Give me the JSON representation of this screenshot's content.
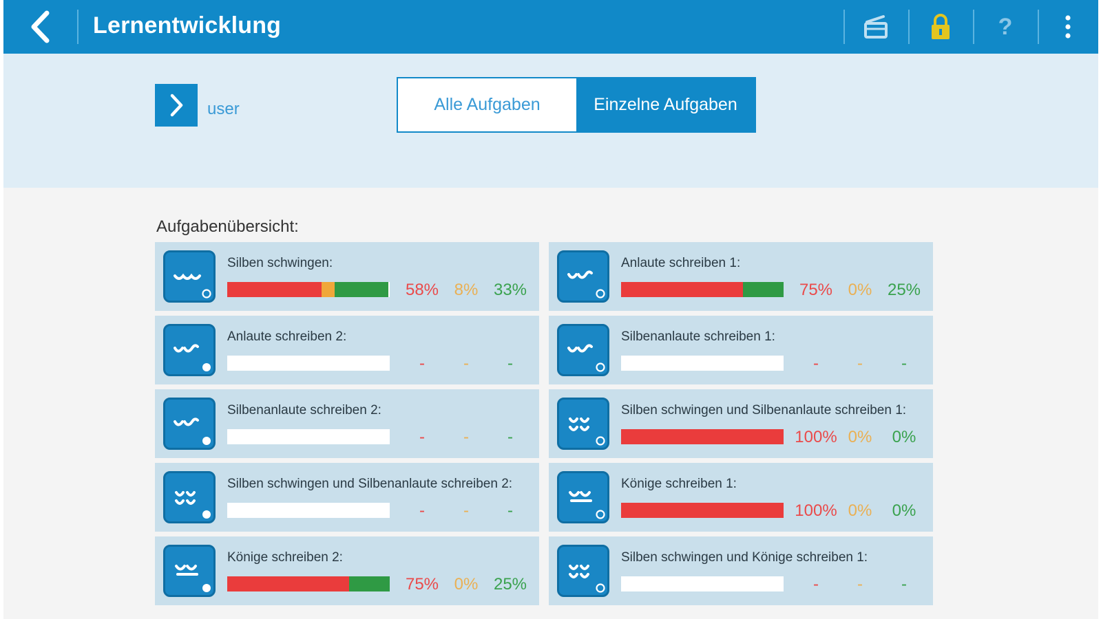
{
  "topbar": {
    "title": "Lernentwicklung",
    "actions": [
      {
        "icon": "scene-board-icon"
      },
      {
        "icon": "lock-icon"
      },
      {
        "icon": "help-icon",
        "glyph": "?"
      },
      {
        "icon": "more-vertical-icon"
      }
    ]
  },
  "user": {
    "label": "user"
  },
  "tabs": {
    "all_label": "Alle Aufgaben",
    "single_label": "Einzelne Aufgaben"
  },
  "overview": {
    "title": "Aufgabenübersicht:",
    "tasks": [
      {
        "name": "Silben schwingen:",
        "red": 58,
        "yellow": 8,
        "green": 33,
        "red_label": "58%",
        "yellow_label": "8%",
        "green_label": "33%"
      },
      {
        "name": "Anlaute schreiben 1:",
        "red": 75,
        "yellow": 0,
        "green": 25,
        "red_label": "75%",
        "yellow_label": "0%",
        "green_label": "25%"
      },
      {
        "name": "Anlaute schreiben 2:",
        "red": 0,
        "yellow": 0,
        "green": 0,
        "red_label": "-",
        "yellow_label": "-",
        "green_label": "-"
      },
      {
        "name": "Silbenanlaute schreiben 1:",
        "red": 0,
        "yellow": 0,
        "green": 0,
        "red_label": "-",
        "yellow_label": "-",
        "green_label": "-"
      },
      {
        "name": "Silbenanlaute schreiben 2:",
        "red": 0,
        "yellow": 0,
        "green": 0,
        "red_label": "-",
        "yellow_label": "-",
        "green_label": "-"
      },
      {
        "name": "Silben schwingen und Silbenanlaute schreiben 1:",
        "red": 100,
        "yellow": 0,
        "green": 0,
        "red_label": "100%",
        "yellow_label": "0%",
        "green_label": "0%"
      },
      {
        "name": "Silben schwingen und Silbenanlaute schreiben 2:",
        "red": 0,
        "yellow": 0,
        "green": 0,
        "red_label": "-",
        "yellow_label": "-",
        "green_label": "-"
      },
      {
        "name": "Könige schreiben 1:",
        "red": 100,
        "yellow": 0,
        "green": 0,
        "red_label": "100%",
        "yellow_label": "0%",
        "green_label": "0%"
      },
      {
        "name": "Könige schreiben 2:",
        "red": 75,
        "yellow": 0,
        "green": 25,
        "red_label": "75%",
        "yellow_label": "0%",
        "green_label": "25%"
      },
      {
        "name": "Silben schwingen und Könige schreiben 1:",
        "red": 0,
        "yellow": 0,
        "green": 0,
        "red_label": "-",
        "yellow_label": "-",
        "green_label": "-"
      }
    ]
  },
  "colors": {
    "primary": "#1189c8",
    "red": "#ea3c3c",
    "yellow": "#f0a73a",
    "green": "#2f9a44"
  }
}
